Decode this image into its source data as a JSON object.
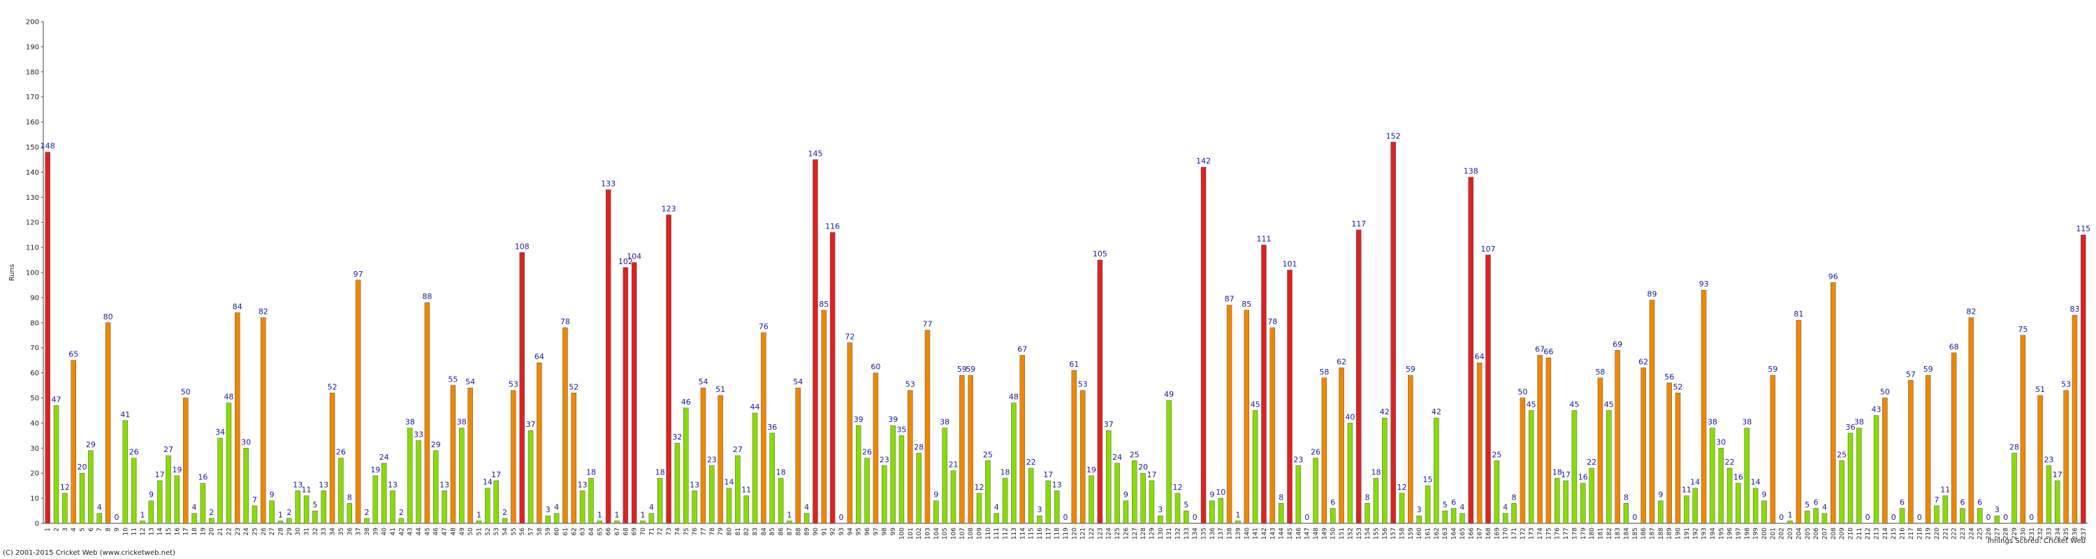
{
  "chart_data": {
    "type": "bar",
    "y_label": "Runs",
    "footer": "(C) 2001-2015 Cricket Web (www.cricketweb.net)",
    "note": "Innings Scored: Cricket Web",
    "ylim": [
      0,
      200
    ],
    "yticks": [
      0,
      10,
      20,
      30,
      40,
      50,
      60,
      70,
      80,
      90,
      100,
      110,
      120,
      130,
      140,
      150,
      160,
      170,
      180,
      190,
      200
    ],
    "grid": false,
    "categories": [
      "1",
      "2",
      "3",
      "4",
      "5",
      "6",
      "7",
      "8",
      "9",
      "10",
      "11",
      "12",
      "13",
      "14",
      "15",
      "16",
      "17",
      "18",
      "19",
      "20",
      "21",
      "22",
      "23",
      "24",
      "25",
      "26",
      "27",
      "28",
      "29",
      "30",
      "31",
      "32",
      "33",
      "34",
      "35",
      "36",
      "37",
      "38",
      "39",
      "40",
      "41",
      "42",
      "43",
      "44",
      "45",
      "46",
      "47",
      "48",
      "49",
      "50",
      "51",
      "52",
      "53",
      "54",
      "55",
      "56",
      "57",
      "58",
      "59",
      "60",
      "61",
      "62",
      "63",
      "64",
      "65",
      "66",
      "67",
      "68",
      "69",
      "70",
      "71",
      "72",
      "73",
      "74",
      "75",
      "76",
      "77",
      "78",
      "79",
      "80",
      "81",
      "82",
      "83",
      "84",
      "85",
      "86",
      "87",
      "88",
      "89",
      "90",
      "91",
      "92",
      "93",
      "94",
      "95",
      "96",
      "97",
      "98",
      "99",
      "100",
      "101",
      "102",
      "103",
      "104",
      "105",
      "106",
      "107",
      "108",
      "109",
      "110",
      "111",
      "112",
      "113",
      "114",
      "115",
      "116",
      "117",
      "118",
      "119",
      "120",
      "121",
      "122",
      "123",
      "124",
      "125",
      "126",
      "127",
      "128",
      "129",
      "130",
      "131",
      "132",
      "133",
      "134",
      "135",
      "136",
      "137",
      "138",
      "139",
      "140",
      "141",
      "142",
      "143",
      "144",
      "145",
      "146",
      "147",
      "148",
      "149",
      "150",
      "151",
      "152",
      "153",
      "154",
      "155",
      "156",
      "157",
      "158",
      "159",
      "160",
      "161",
      "162",
      "163",
      "164",
      "165",
      "166",
      "167",
      "168",
      "169",
      "170",
      "171",
      "172",
      "173",
      "174",
      "175",
      "176",
      "177",
      "178",
      "179",
      "180",
      "181",
      "182",
      "183",
      "184",
      "185",
      "186",
      "187",
      "188",
      "189",
      "190",
      "191",
      "192",
      "193",
      "194",
      "195",
      "196",
      "197",
      "198",
      "199",
      "200",
      "201",
      "202",
      "203",
      "204",
      "205",
      "206",
      "207",
      "208",
      "209",
      "210",
      "211",
      "212",
      "213",
      "214",
      "215",
      "216",
      "217",
      "218",
      "219",
      "220",
      "221",
      "222",
      "223",
      "224",
      "225",
      "226",
      "227",
      "228",
      "229",
      "230",
      "231",
      "232",
      "233",
      "234",
      "235",
      "236",
      "237"
    ],
    "values": [
      148,
      47,
      12,
      65,
      20,
      29,
      4,
      80,
      0,
      41,
      26,
      1,
      9,
      17,
      27,
      19,
      50,
      4,
      16,
      2,
      34,
      48,
      84,
      30,
      7,
      82,
      9,
      1,
      2,
      13,
      11,
      5,
      13,
      52,
      26,
      8,
      97,
      2,
      19,
      24,
      13,
      2,
      38,
      33,
      88,
      29,
      13,
      55,
      38,
      54,
      1,
      14,
      17,
      2,
      53,
      108,
      37,
      64,
      3,
      4,
      78,
      52,
      13,
      18,
      1,
      133,
      1,
      102,
      104,
      1,
      4,
      18,
      123,
      32,
      46,
      13,
      54,
      23,
      51,
      14,
      27,
      11,
      44,
      76,
      36,
      18,
      1,
      54,
      4,
      145,
      85,
      116,
      0,
      72,
      39,
      26,
      60,
      23,
      39,
      35,
      53,
      28,
      77,
      9,
      38,
      21,
      59,
      59,
      12,
      25,
      4,
      18,
      48,
      67,
      22,
      3,
      17,
      13,
      0,
      61,
      53,
      19,
      105,
      37,
      24,
      9,
      25,
      20,
      17,
      3,
      49,
      12,
      5,
      0,
      142,
      9,
      10,
      87,
      1,
      85,
      45,
      111,
      78,
      8,
      101,
      23,
      0,
      26,
      58,
      6,
      62,
      40,
      117,
      8,
      18,
      42,
      152,
      12,
      59,
      3,
      15,
      42,
      5,
      6,
      4,
      138,
      64,
      107,
      25,
      4,
      8,
      50,
      45,
      67,
      66,
      18,
      17,
      45,
      16,
      22,
      58,
      45,
      69,
      8,
      0,
      62,
      89,
      9,
      56,
      52,
      11,
      14,
      93,
      38,
      30,
      22,
      16,
      38,
      14,
      9,
      59,
      0,
      1,
      81,
      5,
      6,
      4,
      96,
      25,
      36,
      38,
      0,
      43,
      50,
      0,
      6,
      57,
      0,
      59,
      7,
      11,
      68,
      6,
      82,
      6,
      0,
      3,
      0,
      28,
      75,
      0,
      51,
      23,
      17,
      53,
      83,
      115
    ],
    "colors": [
      "#d22",
      "#8d0",
      "#8d0",
      "#e80",
      "#8d0",
      "#8d0",
      "#8d0",
      "#e80",
      "#8d0",
      "#8d0",
      "#8d0",
      "#8d0",
      "#8d0",
      "#8d0",
      "#8d0",
      "#8d0",
      "#e80",
      "#8d0",
      "#8d0",
      "#8d0",
      "#8d0",
      "#8d0",
      "#e80",
      "#8d0",
      "#8d0",
      "#e80",
      "#8d0",
      "#8d0",
      "#8d0",
      "#8d0",
      "#8d0",
      "#8d0",
      "#8d0",
      "#e80",
      "#8d0",
      "#8d0",
      "#e80",
      "#8d0",
      "#8d0",
      "#8d0",
      "#8d0",
      "#8d0",
      "#8d0",
      "#8d0",
      "#e80",
      "#8d0",
      "#8d0",
      "#e80",
      "#8d0",
      "#e80",
      "#8d0",
      "#8d0",
      "#8d0",
      "#8d0",
      "#e80",
      "#d22",
      "#8d0",
      "#e80",
      "#8d0",
      "#8d0",
      "#e80",
      "#e80",
      "#8d0",
      "#8d0",
      "#8d0",
      "#d22",
      "#8d0",
      "#d22",
      "#d22",
      "#8d0",
      "#8d0",
      "#8d0",
      "#d22",
      "#8d0",
      "#8d0",
      "#8d0",
      "#e80",
      "#8d0",
      "#e80",
      "#8d0",
      "#8d0",
      "#8d0",
      "#8d0",
      "#e80",
      "#8d0",
      "#8d0",
      "#8d0",
      "#e80",
      "#8d0",
      "#d22",
      "#e80",
      "#d22",
      "#8d0",
      "#e80",
      "#8d0",
      "#8d0",
      "#e80",
      "#8d0",
      "#8d0",
      "#8d0",
      "#e80",
      "#8d0",
      "#e80",
      "#8d0",
      "#8d0",
      "#8d0",
      "#e80",
      "#e80",
      "#8d0",
      "#8d0",
      "#8d0",
      "#8d0",
      "#8d0",
      "#e80",
      "#8d0",
      "#8d0",
      "#8d0",
      "#8d0",
      "#8d0",
      "#e80",
      "#e80",
      "#8d0",
      "#d22",
      "#8d0",
      "#8d0",
      "#8d0",
      "#8d0",
      "#8d0",
      "#8d0",
      "#8d0",
      "#8d0",
      "#8d0",
      "#8d0",
      "#8d0",
      "#d22",
      "#8d0",
      "#8d0",
      "#e80",
      "#8d0",
      "#e80",
      "#8d0",
      "#d22",
      "#e80",
      "#8d0",
      "#d22",
      "#8d0",
      "#8d0",
      "#8d0",
      "#e80",
      "#8d0",
      "#e80",
      "#8d0",
      "#d22",
      "#8d0",
      "#8d0",
      "#8d0",
      "#d22",
      "#8d0",
      "#e80",
      "#8d0",
      "#8d0",
      "#8d0",
      "#8d0",
      "#8d0",
      "#8d0",
      "#d22",
      "#e80",
      "#d22",
      "#8d0",
      "#8d0",
      "#8d0",
      "#e80",
      "#8d0",
      "#e80",
      "#e80",
      "#8d0",
      "#8d0",
      "#8d0",
      "#8d0",
      "#8d0",
      "#e80",
      "#8d0",
      "#e80",
      "#8d0",
      "#8d0",
      "#e80",
      "#e80",
      "#8d0",
      "#e80",
      "#e80",
      "#8d0",
      "#8d0",
      "#e80",
      "#8d0",
      "#8d0",
      "#8d0",
      "#8d0",
      "#8d0",
      "#8d0",
      "#8d0",
      "#e80",
      "#8d0",
      "#8d0",
      "#e80",
      "#8d0",
      "#8d0",
      "#8d0",
      "#e80",
      "#8d0",
      "#8d0",
      "#8d0",
      "#8d0",
      "#8d0",
      "#e80",
      "#8d0",
      "#8d0",
      "#e80",
      "#8d0",
      "#e80",
      "#8d0",
      "#8d0",
      "#e80",
      "#8d0",
      "#e80",
      "#8d0",
      "#8d0",
      "#8d0",
      "#8d0",
      "#8d0",
      "#e80",
      "#8d0",
      "#e80",
      "#8d0",
      "#8d0",
      "#e80",
      "#e80",
      "#d22"
    ]
  }
}
